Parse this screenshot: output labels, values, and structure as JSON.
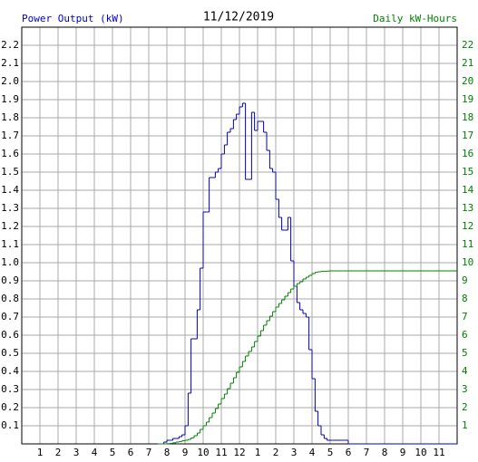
{
  "chart_data": {
    "type": "line",
    "step": "post",
    "title": "11/12/2019",
    "ylabel": "Power Output (kW)",
    "y2label": "Daily kW-Hours",
    "x": [
      7.5,
      7.67,
      7.83,
      8,
      8.17,
      8.33,
      8.5,
      8.67,
      8.83,
      9,
      9.17,
      9.33,
      9.5,
      9.67,
      9.83,
      10,
      10.17,
      10.33,
      10.5,
      10.67,
      10.83,
      11,
      11.17,
      11.33,
      11.5,
      11.67,
      11.83,
      12,
      12.17,
      12.33,
      12.5,
      12.67,
      12.83,
      13,
      13.17,
      13.33,
      13.5,
      13.67,
      13.83,
      14,
      14.17,
      14.33,
      14.5,
      14.67,
      14.83,
      15,
      15.17,
      15.33,
      15.5,
      15.67,
      15.83,
      16,
      16.17,
      16.33,
      16.5,
      16.67,
      16.83,
      17,
      17.17,
      17.33,
      17.5,
      17.67,
      17.83,
      18,
      24
    ],
    "series": [
      {
        "color": "#0000c0",
        "values": [
          0,
          0,
          0.01,
          0.02,
          0.02,
          0.03,
          0.03,
          0.04,
          0.05,
          0.1,
          0.28,
          0.58,
          0.58,
          0.74,
          0.97,
          1.28,
          1.28,
          1.47,
          1.47,
          1.5,
          1.52,
          1.6,
          1.65,
          1.72,
          1.74,
          1.79,
          1.82,
          1.86,
          1.88,
          1.46,
          1.46,
          1.83,
          1.73,
          1.78,
          1.78,
          1.72,
          1.62,
          1.52,
          1.5,
          1.35,
          1.25,
          1.18,
          1.18,
          1.25,
          1.01,
          0.87,
          0.78,
          0.74,
          0.72,
          0.7,
          0.52,
          0.36,
          0.18,
          0.1,
          0.05,
          0.03,
          0.02,
          0.02,
          0.02,
          0.02,
          0.02,
          0.02,
          0.02,
          0,
          0
        ]
      },
      {
        "color": "#008000",
        "axis": "y2",
        "values": [
          0,
          0,
          0,
          0.01,
          0.03,
          0.06,
          0.1,
          0.13,
          0.17,
          0.2,
          0.25,
          0.33,
          0.45,
          0.6,
          0.8,
          1.0,
          1.2,
          1.45,
          1.7,
          1.95,
          2.2,
          2.5,
          2.75,
          3.05,
          3.35,
          3.65,
          3.95,
          4.25,
          4.55,
          4.85,
          5.1,
          5.35,
          5.65,
          5.95,
          6.25,
          6.55,
          6.8,
          7.05,
          7.3,
          7.55,
          7.75,
          7.95,
          8.15,
          8.35,
          8.55,
          8.7,
          8.85,
          8.95,
          9.1,
          9.2,
          9.3,
          9.4,
          9.47,
          9.5,
          9.52,
          9.53,
          9.54,
          9.55,
          9.55,
          9.55,
          9.55,
          9.55,
          9.55,
          9.55,
          9.55
        ]
      }
    ],
    "xlim": [
      0,
      24
    ],
    "xticks": [
      1,
      2,
      3,
      4,
      5,
      6,
      7,
      8,
      9,
      10,
      11,
      12,
      {
        "value": 13,
        "label": "1"
      },
      {
        "value": 14,
        "label": "2"
      },
      {
        "value": 15,
        "label": "3"
      },
      {
        "value": 16,
        "label": "4"
      },
      {
        "value": 17,
        "label": "5"
      },
      {
        "value": 18,
        "label": "6"
      },
      {
        "value": 19,
        "label": "7"
      },
      {
        "value": 20,
        "label": "8"
      },
      {
        "value": 21,
        "label": "9"
      },
      {
        "value": 22,
        "label": "10"
      },
      {
        "value": 23,
        "label": "11"
      }
    ],
    "ylim": [
      0,
      2.3
    ],
    "yticks": [
      0.1,
      0.2,
      0.3,
      0.4,
      0.5,
      0.6,
      0.7,
      0.8,
      0.9,
      {
        "value": 1,
        "label": "1.0"
      },
      1.1,
      1.2,
      1.3,
      1.4,
      1.5,
      1.6,
      1.7,
      1.8,
      1.9,
      {
        "value": 2,
        "label": "2.0"
      },
      2.1,
      2.2
    ],
    "y2lim": [
      0,
      23
    ],
    "y2ticks": [
      1,
      2,
      3,
      4,
      5,
      6,
      7,
      8,
      9,
      10,
      11,
      12,
      13,
      14,
      15,
      16,
      17,
      18,
      19,
      20,
      21,
      22
    ],
    "grid": true
  }
}
